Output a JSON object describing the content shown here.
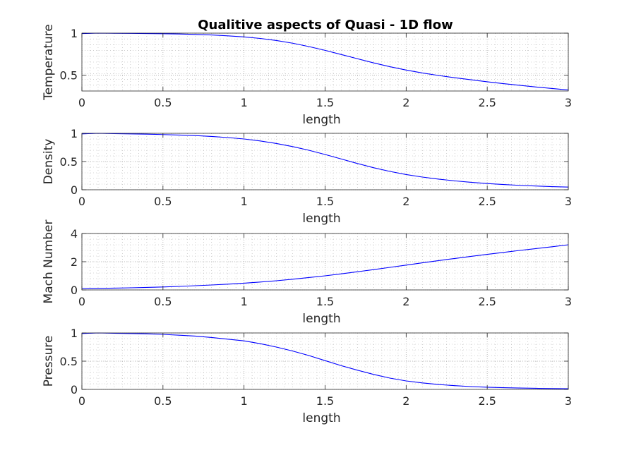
{
  "figure_title": "Qualitive aspects of Quasi - 1D flow",
  "colors": {
    "line": "#0000ff",
    "axis": "#262626",
    "grid": "#b0b0b0",
    "background": "#ffffff"
  },
  "chart_data": [
    {
      "type": "line",
      "title": "Qualitive aspects of Quasi - 1D flow",
      "xlabel": "length",
      "ylabel": "Temperature",
      "xlim": [
        0,
        3
      ],
      "ylim": [
        0.31,
        1
      ],
      "xticks": [
        0,
        0.5,
        1,
        1.5,
        2,
        2.5,
        3
      ],
      "xtick_labels": [
        "0",
        "0.5",
        "1",
        "1.5",
        "2",
        "2.5",
        "3"
      ],
      "yticks": [
        0.5,
        1
      ],
      "ytick_labels": [
        "0.5",
        "1"
      ],
      "grid": true,
      "series": [
        {
          "x": [
            0,
            0.1,
            0.2,
            0.3,
            0.4,
            0.5,
            0.6,
            0.7,
            0.8,
            0.9,
            1.0,
            1.1,
            1.2,
            1.3,
            1.4,
            1.5,
            1.6,
            1.7,
            1.8,
            1.9,
            2.0,
            2.1,
            2.2,
            2.3,
            2.4,
            2.5,
            2.6,
            2.7,
            2.8,
            2.9,
            3.0
          ],
          "y": [
            0.995,
            1.0,
            0.998,
            0.997,
            0.995,
            0.993,
            0.99,
            0.985,
            0.978,
            0.968,
            0.955,
            0.937,
            0.912,
            0.88,
            0.84,
            0.795,
            0.745,
            0.695,
            0.645,
            0.6,
            0.56,
            0.525,
            0.495,
            0.468,
            0.444,
            0.42,
            0.398,
            0.378,
            0.358,
            0.34,
            0.322
          ]
        }
      ]
    },
    {
      "type": "line",
      "xlabel": "length",
      "ylabel": "Density",
      "xlim": [
        0,
        3
      ],
      "ylim": [
        0,
        1
      ],
      "xticks": [
        0,
        0.5,
        1,
        1.5,
        2,
        2.5,
        3
      ],
      "xtick_labels": [
        "0",
        "0.5",
        "1",
        "1.5",
        "2",
        "2.5",
        "3"
      ],
      "yticks": [
        0,
        0.5,
        1
      ],
      "ytick_labels": [
        "0",
        "0.5",
        "1"
      ],
      "grid": true,
      "series": [
        {
          "x": [
            0,
            0.1,
            0.2,
            0.3,
            0.4,
            0.5,
            0.6,
            0.7,
            0.8,
            0.9,
            1.0,
            1.1,
            1.2,
            1.3,
            1.4,
            1.5,
            1.6,
            1.7,
            1.8,
            1.9,
            2.0,
            2.1,
            2.2,
            2.3,
            2.4,
            2.5,
            2.6,
            2.7,
            2.8,
            2.9,
            3.0
          ],
          "y": [
            0.99,
            1.0,
            0.995,
            0.99,
            0.985,
            0.978,
            0.97,
            0.96,
            0.945,
            0.925,
            0.9,
            0.865,
            0.82,
            0.765,
            0.7,
            0.625,
            0.545,
            0.465,
            0.39,
            0.325,
            0.27,
            0.225,
            0.188,
            0.158,
            0.132,
            0.11,
            0.093,
            0.078,
            0.066,
            0.056,
            0.048
          ]
        }
      ]
    },
    {
      "type": "line",
      "xlabel": "length",
      "ylabel": "Mach Number",
      "xlim": [
        0,
        3
      ],
      "ylim": [
        0,
        4
      ],
      "xticks": [
        0,
        0.5,
        1,
        1.5,
        2,
        2.5,
        3
      ],
      "xtick_labels": [
        "0",
        "0.5",
        "1",
        "1.5",
        "2",
        "2.5",
        "3"
      ],
      "yticks": [
        0,
        2,
        4
      ],
      "ytick_labels": [
        "0",
        "2",
        "4"
      ],
      "grid": true,
      "series": [
        {
          "x": [
            0,
            0.1,
            0.2,
            0.3,
            0.4,
            0.5,
            0.6,
            0.7,
            0.8,
            0.9,
            1.0,
            1.1,
            1.2,
            1.3,
            1.4,
            1.5,
            1.6,
            1.7,
            1.8,
            1.9,
            2.0,
            2.1,
            2.2,
            2.3,
            2.4,
            2.5,
            2.6,
            2.7,
            2.8,
            2.9,
            3.0
          ],
          "y": [
            0.1,
            0.11,
            0.13,
            0.15,
            0.18,
            0.21,
            0.25,
            0.3,
            0.35,
            0.41,
            0.48,
            0.56,
            0.65,
            0.76,
            0.88,
            1.0,
            1.14,
            1.29,
            1.44,
            1.6,
            1.76,
            1.92,
            2.08,
            2.23,
            2.38,
            2.52,
            2.66,
            2.8,
            2.93,
            3.06,
            3.2
          ]
        }
      ]
    },
    {
      "type": "line",
      "xlabel": "length",
      "ylabel": "Pressure",
      "xlim": [
        0,
        3
      ],
      "ylim": [
        0,
        1
      ],
      "xticks": [
        0,
        0.5,
        1,
        1.5,
        2,
        2.5,
        3
      ],
      "xtick_labels": [
        "0",
        "0.5",
        "1",
        "1.5",
        "2",
        "2.5",
        "3"
      ],
      "yticks": [
        0,
        0.5,
        1
      ],
      "ytick_labels": [
        "0",
        "0.5",
        "1"
      ],
      "grid": true,
      "series": [
        {
          "x": [
            0,
            0.1,
            0.2,
            0.3,
            0.4,
            0.5,
            0.6,
            0.7,
            0.8,
            0.9,
            1.0,
            1.1,
            1.2,
            1.3,
            1.4,
            1.5,
            1.6,
            1.7,
            1.8,
            1.9,
            2.0,
            2.1,
            2.2,
            2.3,
            2.4,
            2.5,
            2.6,
            2.7,
            2.8,
            2.9,
            3.0
          ],
          "y": [
            0.99,
            1.0,
            0.995,
            0.99,
            0.985,
            0.975,
            0.96,
            0.945,
            0.92,
            0.89,
            0.86,
            0.81,
            0.75,
            0.68,
            0.6,
            0.51,
            0.42,
            0.34,
            0.265,
            0.2,
            0.15,
            0.115,
            0.087,
            0.066,
            0.05,
            0.038,
            0.03,
            0.024,
            0.019,
            0.015,
            0.012
          ]
        }
      ]
    }
  ]
}
